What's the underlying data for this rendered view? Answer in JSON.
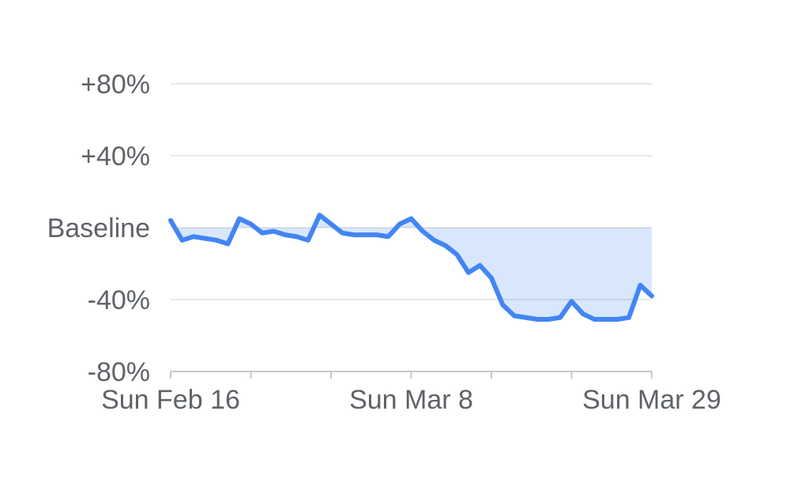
{
  "chart_data": {
    "type": "area",
    "title": "",
    "xlabel": "",
    "ylabel": "",
    "grid": true,
    "legend": "none",
    "ylim": [
      -80,
      80
    ],
    "baseline_value": 0,
    "x": [
      "Feb 16",
      "Feb 17",
      "Feb 18",
      "Feb 19",
      "Feb 20",
      "Feb 21",
      "Feb 22",
      "Feb 23",
      "Feb 24",
      "Feb 25",
      "Feb 26",
      "Feb 27",
      "Feb 28",
      "Feb 29",
      "Mar 1",
      "Mar 2",
      "Mar 3",
      "Mar 4",
      "Mar 5",
      "Mar 6",
      "Mar 7",
      "Mar 8",
      "Mar 9",
      "Mar 10",
      "Mar 11",
      "Mar 12",
      "Mar 13",
      "Mar 14",
      "Mar 15",
      "Mar 16",
      "Mar 17",
      "Mar 18",
      "Mar 19",
      "Mar 20",
      "Mar 21",
      "Mar 22",
      "Mar 23",
      "Mar 24",
      "Mar 25",
      "Mar 26",
      "Mar 27",
      "Mar 28",
      "Mar 29"
    ],
    "values": [
      4,
      -7,
      -5,
      -6,
      -7,
      -9,
      5,
      2,
      -3,
      -2,
      -4,
      -5,
      -7,
      7,
      2,
      -3,
      -4,
      -4,
      -4,
      -5,
      2,
      5,
      -2,
      -7,
      -10,
      -15,
      -25,
      -21,
      -28,
      -43,
      -49,
      -50,
      -51,
      -51,
      -50,
      -41,
      -48,
      -51,
      -51,
      -51,
      -50,
      -32,
      -38
    ],
    "yticks": [
      {
        "value": 80,
        "label": "+80%"
      },
      {
        "value": 40,
        "label": "+40%"
      },
      {
        "value": 0,
        "label": "Baseline"
      },
      {
        "value": -40,
        "label": "-40%"
      },
      {
        "value": -80,
        "label": "-80%"
      }
    ],
    "xticks": [
      {
        "day": 0,
        "label": "Sun Feb 16"
      },
      {
        "day": 7,
        "label": ""
      },
      {
        "day": 14,
        "label": ""
      },
      {
        "day": 21,
        "label": "Sun Mar 8"
      },
      {
        "day": 28,
        "label": ""
      },
      {
        "day": 35,
        "label": ""
      },
      {
        "day": 42,
        "label": "Sun Mar 29"
      }
    ],
    "colors": {
      "line": "#4285f4",
      "area_fill": "rgba(66,133,244,0.2)",
      "gridline": "#e0e0e0",
      "axis": "#c7c7c7",
      "label_text": "#5f6368"
    }
  }
}
